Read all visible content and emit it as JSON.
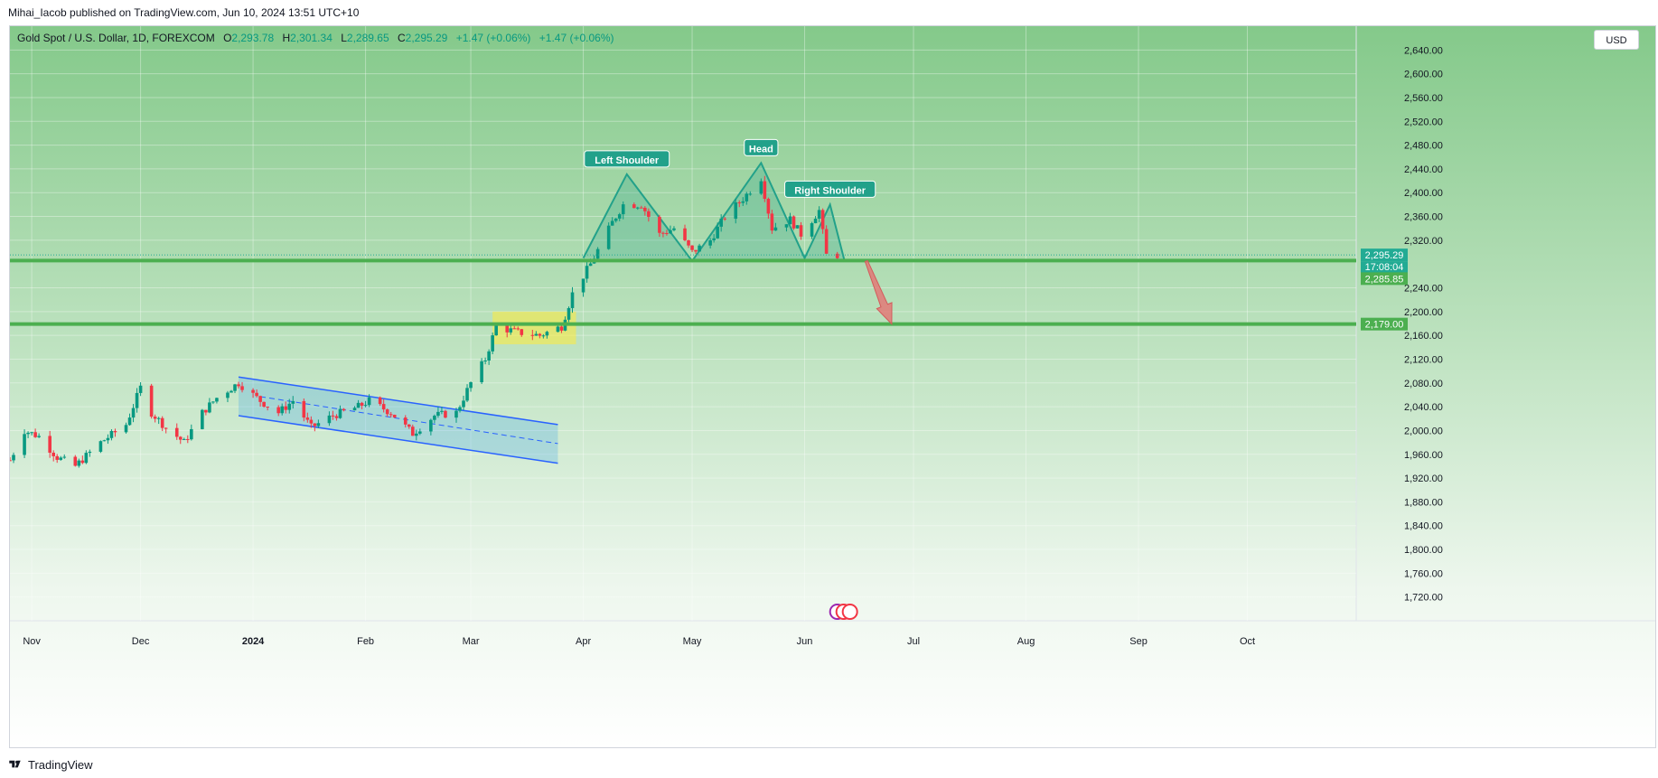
{
  "header": {
    "published_text": "Mihai_Iacob published on TradingView.com, Jun 10, 2024 13:51 UTC+10"
  },
  "symbol": {
    "name": "Gold Spot / U.S. Dollar, 1D, FOREXCOM",
    "o_label": "O",
    "o_value": "2,293.78",
    "h_label": "H",
    "h_value": "2,301.34",
    "l_label": "L",
    "l_value": "2,289.65",
    "c_label": "C",
    "c_value": "2,295.29",
    "change": "+1.47 (+0.06%)",
    "change2": "+1.47 (+0.06%)"
  },
  "currency_button": "USD",
  "footer": {
    "brand": "TradingView"
  },
  "colors": {
    "up": "#089981",
    "down": "#f23645",
    "support": "#4caf50",
    "pattern": "#22a18a",
    "channel": "#2962ff",
    "highlight": "#ffeb3b",
    "price_tag": "#22ab94",
    "arrow": "#e57373"
  },
  "chart_data": {
    "type": "candlestick",
    "y_range": [
      1680,
      2680
    ],
    "y_ticks": [
      "2,640.00",
      "2,600.00",
      "2,560.00",
      "2,520.00",
      "2,480.00",
      "2,440.00",
      "2,400.00",
      "2,360.00",
      "2,320.00",
      "2,240.00",
      "2,200.00",
      "2,160.00",
      "2,120.00",
      "2,080.00",
      "2,040.00",
      "2,000.00",
      "1,960.00",
      "1,920.00",
      "1,880.00",
      "1,840.00",
      "1,800.00",
      "1,760.00",
      "1,720.00"
    ],
    "x_range": [
      "2023-10-26",
      "2024-10-31"
    ],
    "x_ticks": [
      {
        "label": "Nov",
        "date": "2023-11-01"
      },
      {
        "label": "Dec",
        "date": "2023-12-01"
      },
      {
        "label": "2024",
        "date": "2024-01-01"
      },
      {
        "label": "Feb",
        "date": "2024-02-01"
      },
      {
        "label": "Mar",
        "date": "2024-03-01"
      },
      {
        "label": "Apr",
        "date": "2024-04-01"
      },
      {
        "label": "May",
        "date": "2024-05-01"
      },
      {
        "label": "Jun",
        "date": "2024-06-01"
      },
      {
        "label": "Jul",
        "date": "2024-07-01"
      },
      {
        "label": "Aug",
        "date": "2024-08-01"
      },
      {
        "label": "Sep",
        "date": "2024-09-01"
      },
      {
        "label": "Oct",
        "date": "2024-10-01"
      }
    ],
    "price_path": [
      [
        "2023-10-26",
        1950
      ],
      [
        "2023-10-30",
        2000
      ],
      [
        "2023-11-03",
        1990
      ],
      [
        "2023-11-08",
        1955
      ],
      [
        "2023-11-13",
        1940
      ],
      [
        "2023-11-20",
        1980
      ],
      [
        "2023-11-27",
        2010
      ],
      [
        "2023-12-01",
        2072
      ],
      [
        "2023-12-04",
        2030
      ],
      [
        "2023-12-08",
        2005
      ],
      [
        "2023-12-13",
        1980
      ],
      [
        "2023-12-18",
        2030
      ],
      [
        "2023-12-22",
        2055
      ],
      [
        "2023-12-28",
        2080
      ],
      [
        "2024-01-03",
        2050
      ],
      [
        "2024-01-08",
        2030
      ],
      [
        "2024-01-12",
        2050
      ],
      [
        "2024-01-17",
        2005
      ],
      [
        "2024-01-23",
        2025
      ],
      [
        "2024-01-30",
        2040
      ],
      [
        "2024-02-02",
        2050
      ],
      [
        "2024-02-08",
        2030
      ],
      [
        "2024-02-14",
        1995
      ],
      [
        "2024-02-20",
        2025
      ],
      [
        "2024-02-26",
        2030
      ],
      [
        "2024-03-01",
        2080
      ],
      [
        "2024-03-05",
        2120
      ],
      [
        "2024-03-08",
        2175
      ],
      [
        "2024-03-14",
        2165
      ],
      [
        "2024-03-20",
        2160
      ],
      [
        "2024-03-26",
        2175
      ],
      [
        "2024-03-29",
        2230
      ],
      [
        "2024-04-03",
        2280
      ],
      [
        "2024-04-09",
        2350
      ],
      [
        "2024-04-12",
        2380
      ],
      [
        "2024-04-17",
        2380
      ],
      [
        "2024-04-22",
        2330
      ],
      [
        "2024-04-26",
        2340
      ],
      [
        "2024-05-01",
        2300
      ],
      [
        "2024-05-06",
        2320
      ],
      [
        "2024-05-10",
        2360
      ],
      [
        "2024-05-15",
        2390
      ],
      [
        "2024-05-20",
        2425
      ],
      [
        "2024-05-23",
        2340
      ],
      [
        "2024-05-28",
        2355
      ],
      [
        "2024-05-31",
        2330
      ],
      [
        "2024-06-05",
        2370
      ],
      [
        "2024-06-07",
        2295
      ],
      [
        "2024-06-10",
        2295
      ]
    ],
    "last_price": {
      "value": 2295.29,
      "label": "2,295.29",
      "countdown": "17:08:04"
    },
    "support_lines": [
      {
        "value": 2285.85,
        "label": "2,285.85"
      },
      {
        "value": 2179.0,
        "label": "2,179.00"
      }
    ],
    "pattern": {
      "name": "Head and Shoulders",
      "points": [
        [
          "2024-04-01",
          2290
        ],
        [
          "2024-04-13",
          2431
        ],
        [
          "2024-05-01",
          2285
        ],
        [
          "2024-05-20",
          2450
        ],
        [
          "2024-06-01",
          2290
        ],
        [
          "2024-06-08",
          2380
        ],
        [
          "2024-06-12",
          2285
        ]
      ],
      "labels": [
        {
          "text": "Left Shoulder",
          "date": "2024-04-13",
          "value": 2431
        },
        {
          "text": "Head",
          "date": "2024-05-20",
          "value": 2450
        },
        {
          "text": "Right Shoulder",
          "date": "2024-06-08",
          "value": 2380
        }
      ]
    },
    "channel": {
      "upper": [
        [
          "2023-12-28",
          2090
        ],
        [
          "2024-03-25",
          2010
        ]
      ],
      "lower": [
        [
          "2023-12-28",
          2025
        ],
        [
          "2024-03-25",
          1945
        ]
      ],
      "mid": [
        [
          "2024-01-03",
          2057
        ],
        [
          "2024-03-25",
          1978
        ]
      ]
    },
    "consolidation": {
      "start": "2024-03-07",
      "end": "2024-03-30",
      "top": 2200,
      "bottom": 2145
    },
    "projection": {
      "from": [
        "2024-06-18",
        2285
      ],
      "to": [
        "2024-06-25",
        2179
      ]
    }
  }
}
